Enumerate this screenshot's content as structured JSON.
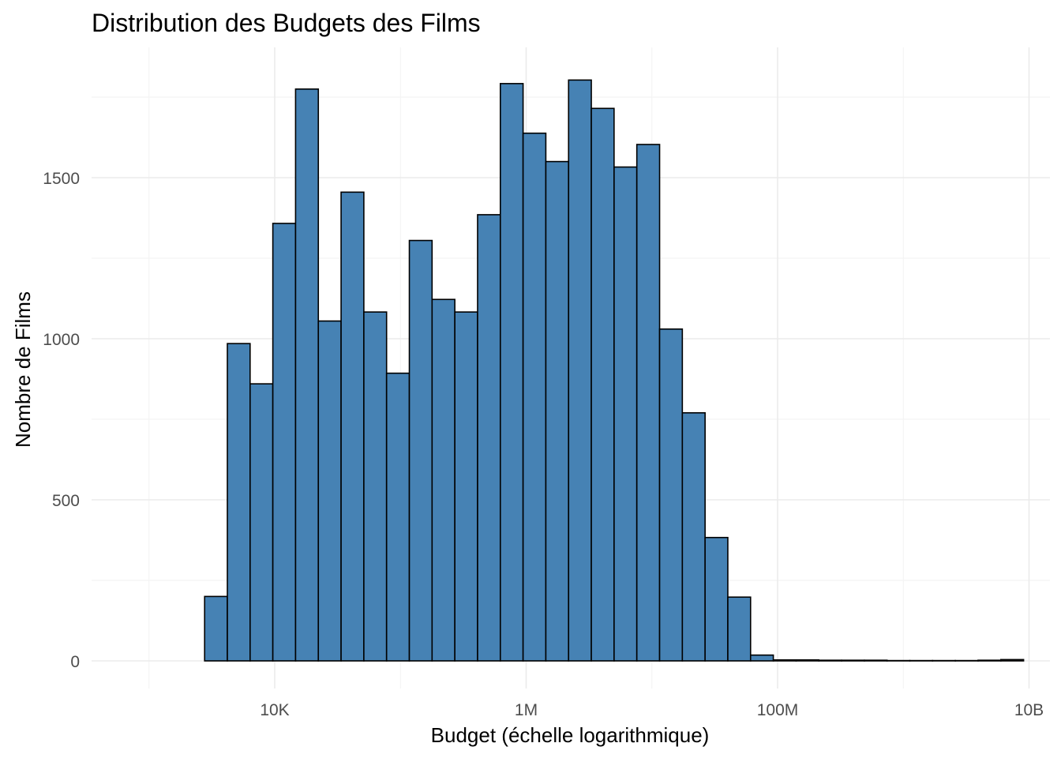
{
  "chart_data": {
    "type": "bar",
    "title": "Distribution des Budgets des Films",
    "xlabel": "Budget (échelle logarithmique)",
    "ylabel": "Nombre de Films",
    "x_scale": "log10",
    "xlim": [
      1000,
      10000000000
    ],
    "ylim": [
      0,
      1800
    ],
    "x_ticks": [
      {
        "value": 10000,
        "label": "10K"
      },
      {
        "value": 1000000,
        "label": "1M"
      },
      {
        "value": 100000000,
        "label": "100M"
      },
      {
        "value": 10000000000,
        "label": "10B"
      }
    ],
    "y_ticks": [
      {
        "value": 0,
        "label": "0"
      },
      {
        "value": 500,
        "label": "500"
      },
      {
        "value": 1000,
        "label": "1000"
      },
      {
        "value": 1500,
        "label": "1500"
      }
    ],
    "grid": true,
    "bar_color": "#4682B4",
    "bar_edge_color": "#000000",
    "bin_edges": [
      2770,
      4200,
      6370,
      9660,
      14650,
      22230,
      33720,
      51150,
      77590,
      117700,
      178500,
      270800,
      410800,
      623200,
      945300,
      1434000,
      2175000,
      3299000,
      5004000,
      7591000,
      11520000,
      17470000,
      26500000,
      40190000,
      60970000,
      92490000,
      140300000,
      212800000,
      322800000,
      489700000,
      742800000,
      1127000000,
      1709000000,
      2593000000,
      3933000000,
      5966000000,
      9050000000
    ],
    "values": [
      200,
      985,
      860,
      1358,
      1775,
      1055,
      1455,
      1083,
      893,
      1305,
      1122,
      1083,
      1385,
      1792,
      1638,
      1550,
      1803,
      1715,
      1533,
      1603,
      1030,
      770,
      383,
      198,
      18,
      3,
      3,
      2,
      2,
      2,
      1,
      1,
      1,
      1,
      2,
      4
    ]
  }
}
